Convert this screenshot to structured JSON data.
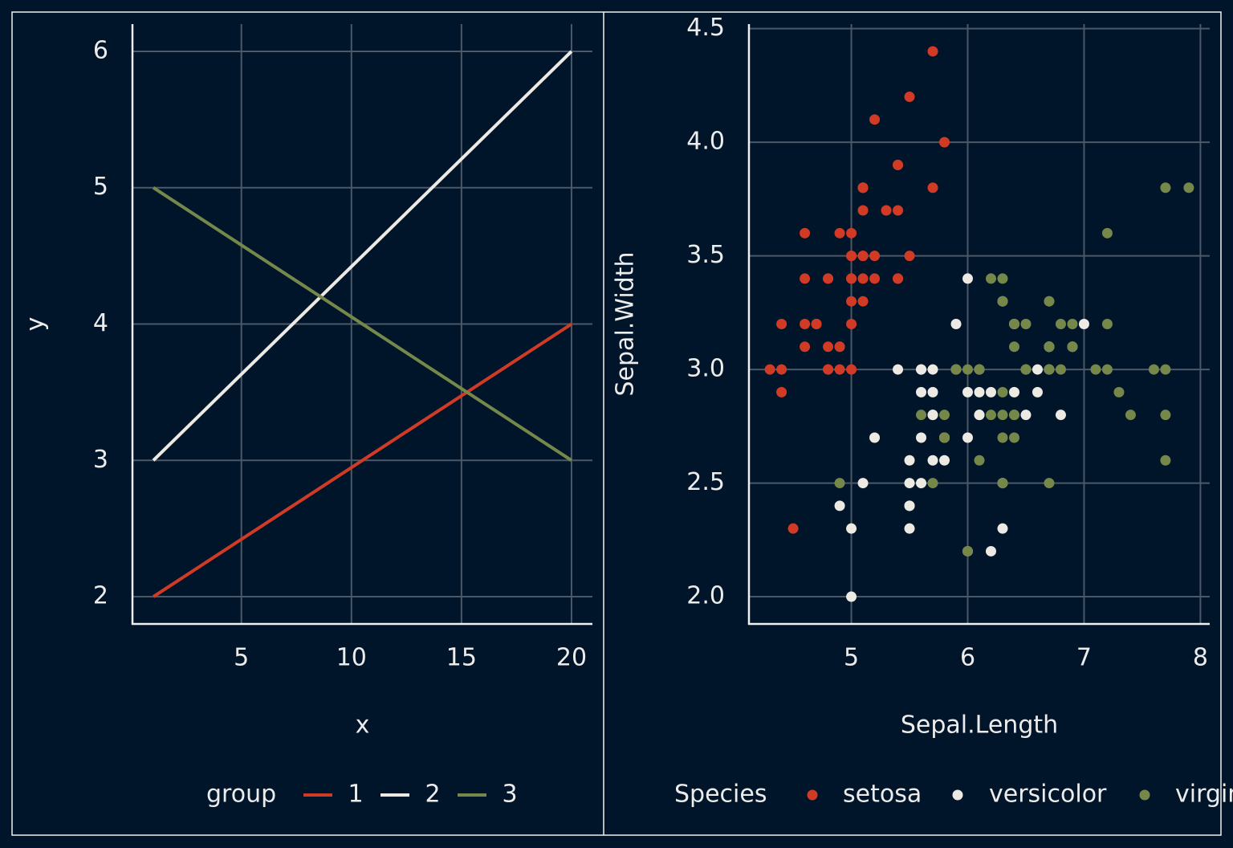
{
  "chart_data": [
    {
      "type": "line",
      "x_label": "x",
      "y_label": "y",
      "legend_title": "group",
      "x": [
        1,
        20
      ],
      "series": [
        {
          "name": "1",
          "color": "#d13b26",
          "values": [
            2,
            4
          ]
        },
        {
          "name": "2",
          "color": "#ede9e3",
          "values": [
            3,
            6
          ]
        },
        {
          "name": "3",
          "color": "#75884a",
          "values": [
            5,
            3
          ]
        }
      ],
      "xlim": [
        0.05,
        20.95
      ],
      "ylim": [
        1.8,
        6.2
      ],
      "xticks": [
        5,
        10,
        15,
        20
      ],
      "yticks": [
        2,
        3,
        4,
        5,
        6
      ],
      "grid": true
    },
    {
      "type": "scatter",
      "x_label": "Sepal.Length",
      "y_label": "Sepal.Width",
      "legend_title": "Species",
      "series": [
        {
          "name": "setosa",
          "color": "#d13b26",
          "x": [
            5.1,
            4.9,
            4.7,
            4.6,
            5.0,
            5.4,
            4.6,
            5.0,
            4.4,
            4.9,
            5.4,
            4.8,
            4.8,
            4.3,
            5.8,
            5.7,
            5.4,
            5.1,
            5.7,
            5.1,
            5.4,
            5.1,
            4.6,
            5.1,
            4.8,
            5.0,
            5.0,
            5.2,
            5.2,
            4.7,
            4.8,
            5.4,
            5.2,
            5.5,
            4.9,
            5.0,
            5.5,
            4.9,
            4.4,
            5.1,
            5.0,
            4.5,
            4.4,
            5.0,
            5.1,
            4.8,
            5.1,
            4.6,
            5.3,
            5.0
          ],
          "values": [
            3.5,
            3.0,
            3.2,
            3.1,
            3.6,
            3.9,
            3.4,
            3.4,
            2.9,
            3.1,
            3.7,
            3.4,
            3.0,
            3.0,
            4.0,
            4.4,
            3.9,
            3.5,
            3.8,
            3.8,
            3.4,
            3.7,
            3.6,
            3.3,
            3.4,
            3.0,
            3.4,
            3.5,
            3.4,
            3.2,
            3.1,
            3.4,
            4.1,
            4.2,
            3.1,
            3.2,
            3.5,
            3.6,
            3.0,
            3.4,
            3.5,
            2.3,
            3.2,
            3.5,
            3.8,
            3.0,
            3.8,
            3.2,
            3.7,
            3.3
          ]
        },
        {
          "name": "versicolor",
          "color": "#ede9e3",
          "x": [
            7.0,
            6.4,
            6.9,
            5.5,
            6.5,
            5.7,
            6.3,
            4.9,
            6.6,
            5.2,
            5.0,
            5.9,
            6.0,
            6.1,
            5.6,
            6.7,
            5.6,
            5.8,
            6.2,
            5.6,
            5.9,
            6.1,
            6.3,
            6.1,
            6.4,
            6.6,
            6.8,
            6.7,
            6.0,
            5.7,
            5.5,
            5.5,
            5.8,
            6.0,
            5.4,
            6.0,
            6.7,
            6.3,
            5.6,
            5.5,
            5.5,
            6.1,
            5.8,
            5.0,
            5.6,
            5.7,
            5.7,
            6.2,
            5.1,
            5.7
          ],
          "values": [
            3.2,
            3.2,
            3.1,
            2.3,
            2.8,
            2.8,
            3.3,
            2.4,
            2.9,
            2.7,
            2.0,
            3.0,
            2.2,
            2.9,
            2.9,
            3.1,
            3.0,
            2.7,
            2.2,
            2.5,
            3.2,
            2.8,
            2.5,
            2.8,
            2.9,
            3.0,
            2.8,
            3.0,
            2.9,
            2.6,
            2.4,
            2.4,
            2.7,
            2.7,
            3.0,
            3.4,
            3.1,
            2.3,
            3.0,
            2.5,
            2.6,
            3.0,
            2.6,
            2.3,
            2.7,
            3.0,
            2.9,
            2.9,
            2.5,
            2.8
          ]
        },
        {
          "name": "virginica",
          "color": "#75884a",
          "x": [
            6.3,
            5.8,
            7.1,
            6.3,
            6.5,
            7.6,
            4.9,
            7.3,
            6.7,
            7.2,
            6.5,
            6.4,
            6.8,
            5.7,
            5.8,
            6.4,
            6.5,
            7.7,
            7.7,
            6.0,
            6.9,
            5.6,
            7.7,
            6.3,
            6.7,
            7.2,
            6.2,
            6.1,
            6.4,
            7.2,
            7.4,
            7.9,
            6.4,
            6.3,
            6.1,
            7.7,
            6.3,
            6.4,
            6.0,
            6.9,
            6.7,
            6.9,
            5.8,
            6.8,
            6.7,
            6.7,
            6.3,
            6.5,
            6.2,
            5.9
          ],
          "values": [
            3.3,
            2.7,
            3.0,
            2.9,
            3.0,
            3.0,
            2.5,
            2.9,
            2.5,
            3.6,
            3.2,
            2.7,
            3.0,
            2.5,
            2.8,
            3.2,
            3.0,
            3.8,
            2.6,
            2.2,
            3.2,
            2.8,
            2.8,
            2.7,
            3.3,
            3.2,
            2.8,
            3.0,
            2.8,
            3.0,
            2.8,
            3.8,
            2.8,
            2.8,
            2.6,
            3.0,
            3.4,
            3.1,
            3.0,
            3.1,
            3.1,
            3.1,
            2.7,
            3.2,
            3.3,
            3.0,
            2.5,
            3.0,
            3.4,
            3.0
          ]
        }
      ],
      "xlim": [
        4.12,
        8.08
      ],
      "ylim": [
        1.88,
        4.52
      ],
      "xticks": [
        5,
        6,
        7,
        8
      ],
      "yticks": [
        {
          "value": 2,
          "label": "2.0"
        },
        2.5,
        {
          "value": 3,
          "label": "3.0"
        },
        3.5,
        {
          "value": 4,
          "label": "4.0"
        },
        4.5
      ],
      "grid": true
    }
  ]
}
